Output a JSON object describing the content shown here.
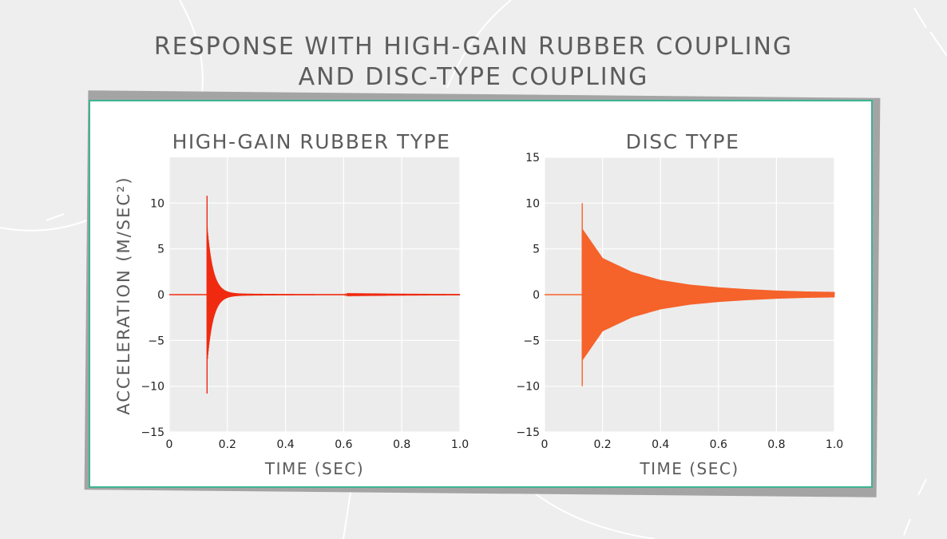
{
  "title": {
    "line1": "RESPONSE WITH HIGH-GAIN RUBBER COUPLING",
    "line2": "AND DISC-TYPE COUPLING"
  },
  "y_axis_label": "ACCELERATION (M/SEC²)",
  "colors": {
    "background": "#eeeeee",
    "card_border": "#3fb392",
    "plot_bg": "#ececec",
    "rubber_series": "#ef2a10",
    "disc_series": "#f5622a",
    "text": "#5c5c5c"
  },
  "chart_data": [
    {
      "type": "line",
      "title": "HIGH-GAIN RUBBER TYPE",
      "xlabel": "TIME (SEC)",
      "ylabel": "ACCELERATION (M/SEC²)",
      "xlim": [
        0,
        1.0
      ],
      "ylim": [
        -15,
        15
      ],
      "xticks": [
        0,
        0.2,
        0.4,
        0.6,
        0.8,
        1.0
      ],
      "xtick_labels": [
        "0",
        "0.2",
        "0.4",
        "0.6",
        "0.8",
        "1.0"
      ],
      "yticks": [
        10,
        5,
        0,
        -5,
        -10,
        -15
      ],
      "ytick_labels": [
        "10",
        "5",
        "0",
        "−5",
        "−10",
        "−15"
      ],
      "grid": true,
      "series": [
        {
          "impact_time": 0.13,
          "peak_max": 10.8,
          "peak_min": -10.8,
          "baseline": 0,
          "decay_time": 0.02,
          "description_points": [
            [
              0,
              0
            ],
            [
              0.125,
              0
            ],
            [
              0.13,
              10.8
            ],
            [
              0.13,
              -10.8
            ],
            [
              0.15,
              0.3
            ],
            [
              1.0,
              0
            ]
          ]
        }
      ]
    },
    {
      "type": "line",
      "title": "DISC TYPE",
      "xlabel": "TIME (SEC)",
      "ylabel": "",
      "xlim": [
        0,
        1.0
      ],
      "ylim": [
        -15,
        15
      ],
      "xticks": [
        0,
        0.2,
        0.4,
        0.6,
        0.8,
        1.0
      ],
      "xtick_labels": [
        "0",
        "0.2",
        "0.4",
        "0.6",
        "0.8",
        "1.0"
      ],
      "yticks": [
        15,
        10,
        5,
        0,
        -5,
        -10,
        -15
      ],
      "ytick_labels": [
        "15",
        "10",
        "5",
        "0",
        "−5",
        "−10",
        "−15"
      ],
      "grid": true,
      "series": [
        {
          "impact_time": 0.13,
          "peak_max": 10.0,
          "peak_min": -10.0,
          "baseline": 0,
          "envelope": [
            [
              0.13,
              7.2
            ],
            [
              0.2,
              4.0
            ],
            [
              0.3,
              2.5
            ],
            [
              0.4,
              1.6
            ],
            [
              0.5,
              1.1
            ],
            [
              0.6,
              0.8
            ],
            [
              0.7,
              0.6
            ],
            [
              0.8,
              0.45
            ],
            [
              0.9,
              0.35
            ],
            [
              1.0,
              0.3
            ]
          ]
        }
      ]
    }
  ]
}
